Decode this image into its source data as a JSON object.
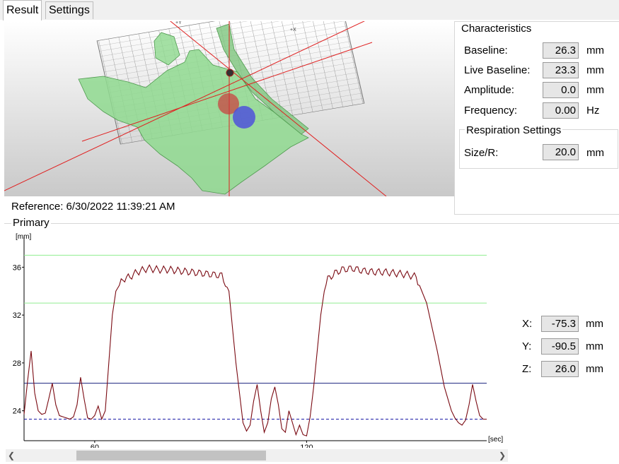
{
  "tabs": [
    {
      "label": "Result",
      "active": true
    },
    {
      "label": "Settings",
      "active": false
    }
  ],
  "view3d": {
    "axis_labels": {
      "y": "+Y",
      "x": "+X"
    },
    "reference_text": "Reference: 6/30/2022 11:39:21 AM"
  },
  "characteristics": {
    "title": "Characteristics",
    "rows": [
      {
        "label": "Baseline:",
        "value": "26.3",
        "unit": "mm"
      },
      {
        "label": "Live Baseline:",
        "value": "23.3",
        "unit": "mm"
      },
      {
        "label": "Amplitude:",
        "value": "0.0",
        "unit": "mm"
      },
      {
        "label": "Frequency:",
        "value": "0.00",
        "unit": "Hz"
      }
    ]
  },
  "respiration_settings": {
    "title": "Respiration Settings",
    "rows": [
      {
        "label": "Size/R:",
        "value": "20.0",
        "unit": "mm"
      }
    ]
  },
  "primary": {
    "title": "Primary",
    "position": [
      {
        "label": "X:",
        "value": "-75.3",
        "unit": "mm"
      },
      {
        "label": "Y:",
        "value": "-90.5",
        "unit": "mm"
      },
      {
        "label": "Z:",
        "value": "26.0",
        "unit": "mm"
      }
    ]
  },
  "chart_data": {
    "type": "line",
    "title": "",
    "xlabel": "[sec]",
    "ylabel": "[mm]",
    "xlim": [
      40,
      171
    ],
    "ylim": [
      21.5,
      38.5
    ],
    "x_ticks": [
      60,
      120
    ],
    "y_ticks": [
      24,
      28,
      32,
      36
    ],
    "grid": false,
    "reference_lines": [
      {
        "y": 37.0,
        "color": "#90ee90",
        "style": "solid"
      },
      {
        "y": 33.0,
        "color": "#90ee90",
        "style": "solid"
      },
      {
        "y": 26.3,
        "color": "#1a237e",
        "style": "solid"
      },
      {
        "y": 23.3,
        "color": "#1a1aa6",
        "style": "dashed"
      }
    ],
    "series": [
      {
        "color": "#7a0a12",
        "x": [
          40,
          41,
          42,
          43,
          44,
          45,
          46,
          47,
          48,
          49,
          50,
          51,
          52,
          53,
          54,
          55,
          56,
          57,
          58,
          59,
          60,
          61,
          62,
          63,
          64,
          65,
          66,
          68,
          70,
          72,
          75,
          78,
          81,
          84,
          87,
          90,
          93,
          96,
          98,
          99,
          100,
          101,
          102,
          103,
          104,
          105,
          106,
          107,
          108,
          109,
          110,
          111,
          112,
          113,
          114,
          115,
          116,
          117,
          118,
          119,
          120,
          121,
          122,
          123,
          124,
          125,
          126,
          128,
          130,
          133,
          136,
          139,
          142,
          145,
          148,
          151,
          154,
          157,
          159,
          160,
          161,
          162,
          163,
          164,
          165,
          166,
          167,
          168,
          169,
          170,
          171
        ],
        "y": [
          23.7,
          26.5,
          29.0,
          25.5,
          24.0,
          23.7,
          23.8,
          25.0,
          26.3,
          24.5,
          23.6,
          23.5,
          23.4,
          23.3,
          23.5,
          24.5,
          26.8,
          25.0,
          23.4,
          23.3,
          23.6,
          24.4,
          23.3,
          24.0,
          28.0,
          32.0,
          34.0,
          35.0,
          35.2,
          35.6,
          35.9,
          35.8,
          35.8,
          35.7,
          35.6,
          35.5,
          35.4,
          35.3,
          34.0,
          31.0,
          28.0,
          25.5,
          23.0,
          22.3,
          22.8,
          24.8,
          26.2,
          24.0,
          22.2,
          23.0,
          25.0,
          26.0,
          24.5,
          22.5,
          22.2,
          24.0,
          23.0,
          22.0,
          22.8,
          22.0,
          21.9,
          23.5,
          26.0,
          29.0,
          32.0,
          34.0,
          35.0,
          35.5,
          35.8,
          35.9,
          35.7,
          35.6,
          35.6,
          35.5,
          35.4,
          35.2,
          33.0,
          29.0,
          26.0,
          25.0,
          24.0,
          23.4,
          23.0,
          22.8,
          23.2,
          24.5,
          26.2,
          24.8,
          23.6,
          23.3,
          23.3
        ]
      }
    ]
  },
  "colors": {
    "surface": "#8fd98f",
    "reference_sphere": "#cc3b3b",
    "live_sphere": "#4a4adf",
    "axis_line": "#e02020"
  }
}
